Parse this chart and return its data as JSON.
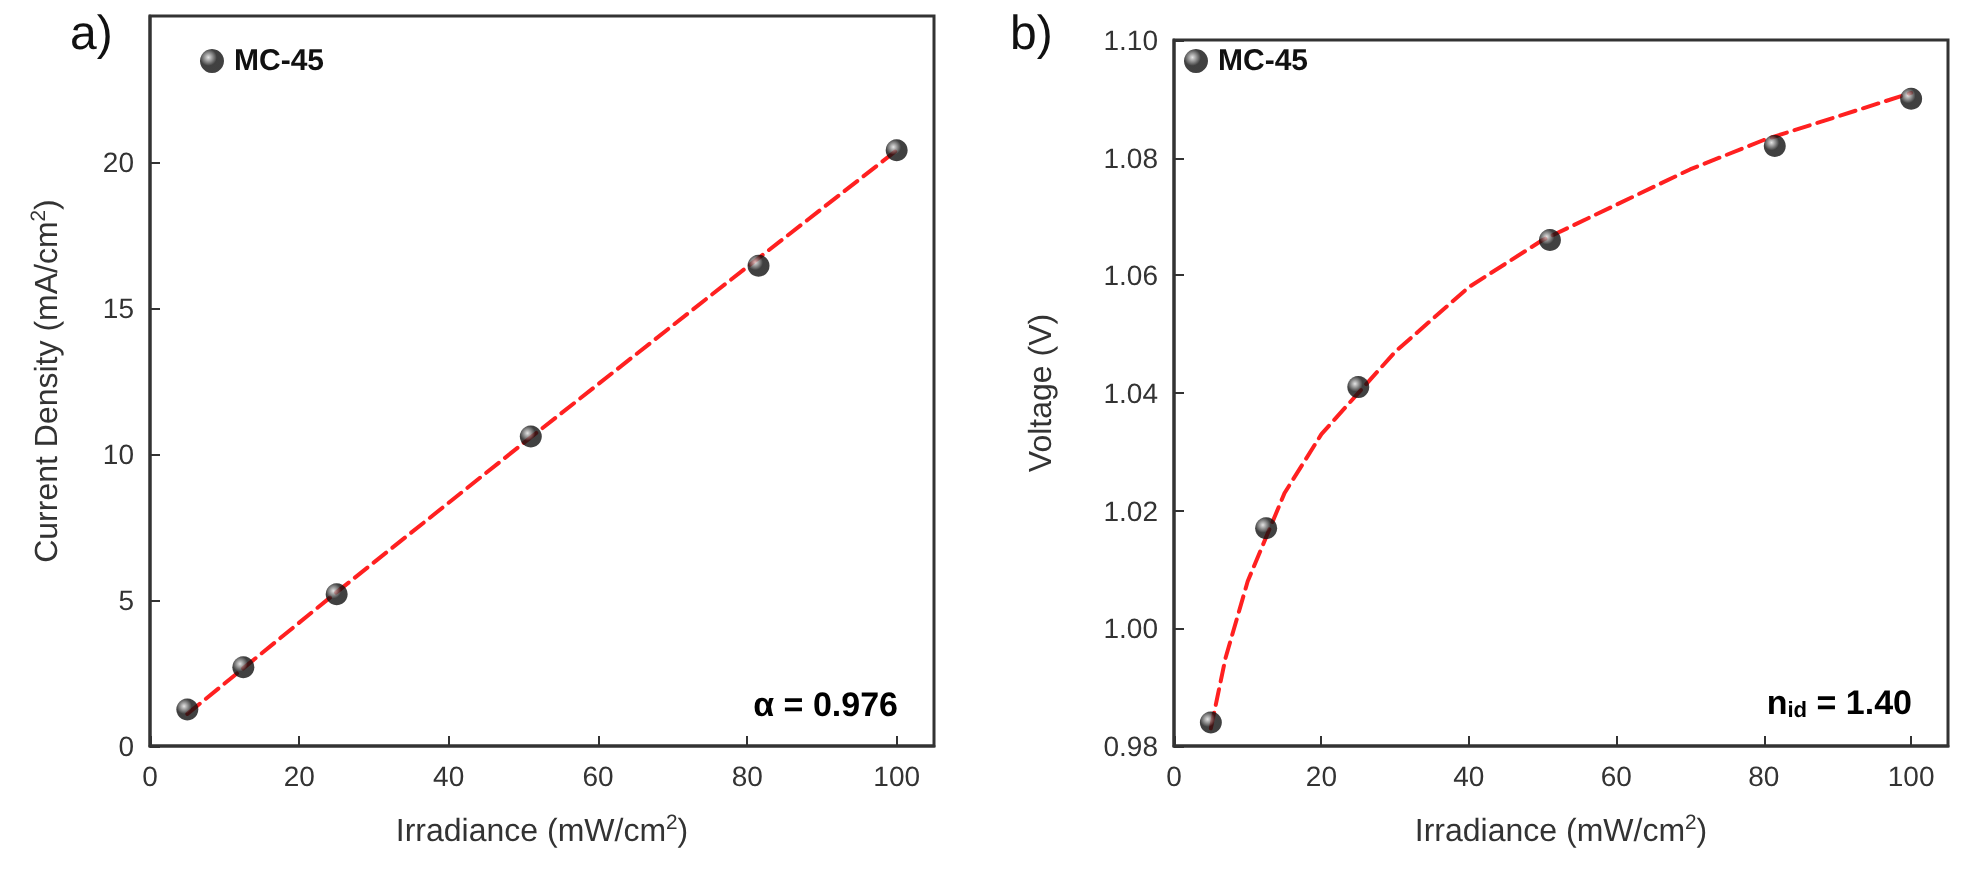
{
  "chart_data": [
    {
      "type": "scatter",
      "title": "a)",
      "xlabel": "Irradiance (mW/cm$^{2}$)",
      "ylabel": "Current Density (mA/cm$^{2}$)",
      "xlim": [
        0,
        105
      ],
      "xticks": [
        0,
        20,
        40,
        60,
        80,
        100
      ],
      "ylim": [
        0,
        25
      ],
      "yticks": [
        0,
        5,
        10,
        15,
        20
      ],
      "legend": "top left",
      "grid": false,
      "annotations": [
        "α = 0.976"
      ],
      "series": [
        {
          "name": "MC-45",
          "color": "#111111",
          "marker": "circle",
          "x": [
            5,
            12.5,
            25,
            51,
            81.5,
            100
          ],
          "values": [
            1.25,
            2.7,
            5.2,
            10.6,
            16.45,
            20.4
          ]
        },
        {
          "type": "line",
          "color": "#ff2020",
          "marker": "none",
          "line_style": "dashed",
          "x": [
            5,
            25,
            50,
            75,
            100
          ],
          "values": [
            1.1,
            5.27,
            10.37,
            15.41,
            20.4
          ]
        }
      ]
    },
    {
      "type": "scatter",
      "title": "b)",
      "xlabel": "Irradiance (mW/cm$^{2}$)",
      "ylabel": "Voltage (V)",
      "xlim": [
        0,
        105
      ],
      "xticks": [
        0,
        20,
        40,
        60,
        80,
        100
      ],
      "ylim": [
        0.98,
        1.1
      ],
      "yticks": [
        0.98,
        {
          "value": 1.0,
          "label": "1.00"
        },
        1.02,
        1.04,
        1.06,
        1.08,
        {
          "value": 1.1,
          "label": "1.10"
        }
      ],
      "legend": "top left",
      "grid": false,
      "annotations": [
        "n$_{id}$ = 1.40"
      ],
      "series": [
        {
          "name": "MC-45",
          "color": "#111111",
          "marker": "circle",
          "x": [
            5,
            12.5,
            25,
            51,
            81.5,
            100
          ],
          "values": [
            0.984,
            1.017,
            1.041,
            1.066,
            1.082,
            1.09
          ]
        },
        {
          "type": "line",
          "color": "#ff2020",
          "marker": "none",
          "line_style": "dashed",
          "x": [
            5,
            7,
            10,
            15,
            20,
            30,
            40,
            50,
            60,
            70,
            80,
            90,
            100
          ],
          "values": [
            0.983,
            0.995,
            1.008,
            1.023,
            1.033,
            1.047,
            1.058,
            1.066,
            1.072,
            1.078,
            1.083,
            1.087,
            1.091
          ]
        }
      ]
    }
  ]
}
